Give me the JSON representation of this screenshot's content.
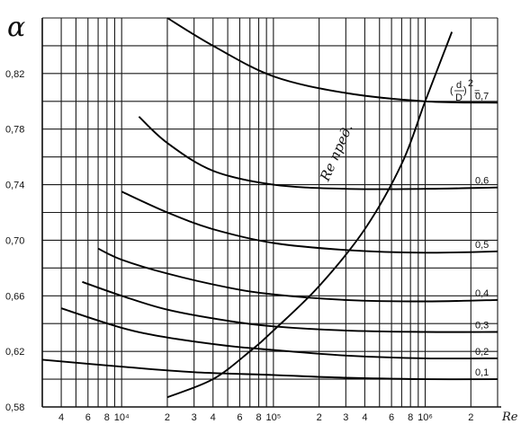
{
  "chart_data": {
    "type": "line",
    "x_scale": "log",
    "xlim": [
      3000,
      3000000
    ],
    "ylim": [
      0.58,
      0.86
    ],
    "ylabel": "α",
    "xlabel": "Re",
    "grid": true,
    "legend": "none",
    "y_ticks": [
      {
        "value": 0.58,
        "label": "0,58"
      },
      {
        "value": 0.62,
        "label": "0,62"
      },
      {
        "value": 0.66,
        "label": "0,66"
      },
      {
        "value": 0.7,
        "label": "0,70"
      },
      {
        "value": 0.74,
        "label": "0,74"
      },
      {
        "value": 0.78,
        "label": "0,78"
      },
      {
        "value": 0.82,
        "label": "0,82"
      }
    ],
    "y_grid": [
      0.58,
      0.6,
      0.62,
      0.64,
      0.66,
      0.68,
      0.7,
      0.72,
      0.74,
      0.76,
      0.78,
      0.8,
      0.82,
      0.84,
      0.86
    ],
    "x_ticks": [
      {
        "value": 4000,
        "label": "4"
      },
      {
        "value": 6000,
        "label": "6"
      },
      {
        "value": 8000,
        "label": "8"
      },
      {
        "value": 10000,
        "label": "10⁴"
      },
      {
        "value": 20000,
        "label": "2"
      },
      {
        "value": 30000,
        "label": "3"
      },
      {
        "value": 40000,
        "label": "4"
      },
      {
        "value": 60000,
        "label": "6"
      },
      {
        "value": 80000,
        "label": "8"
      },
      {
        "value": 100000,
        "label": "10⁵"
      },
      {
        "value": 200000,
        "label": "2"
      },
      {
        "value": 300000,
        "label": "3"
      },
      {
        "value": 400000,
        "label": "4"
      },
      {
        "value": 600000,
        "label": "6"
      },
      {
        "value": 800000,
        "label": "8"
      },
      {
        "value": 1000000,
        "label": "10⁶"
      },
      {
        "value": 2000000,
        "label": "2"
      }
    ],
    "x_grid": [
      3000,
      4000,
      5000,
      6000,
      7000,
      8000,
      9000,
      10000,
      20000,
      30000,
      40000,
      50000,
      60000,
      70000,
      80000,
      90000,
      100000,
      200000,
      300000,
      400000,
      500000,
      600000,
      700000,
      800000,
      900000,
      1000000,
      2000000,
      3000000
    ],
    "curve_group_label": "(d/D)² =",
    "series": [
      {
        "name": "0,7",
        "x": [
          20000,
          40000,
          100000,
          300000,
          1000000,
          3000000
        ],
        "y": [
          0.86,
          0.84,
          0.818,
          0.806,
          0.8,
          0.799
        ]
      },
      {
        "name": "0,6",
        "x": [
          13000,
          20000,
          40000,
          100000,
          300000,
          1000000,
          3000000
        ],
        "y": [
          0.789,
          0.77,
          0.75,
          0.74,
          0.737,
          0.737,
          0.738
        ]
      },
      {
        "name": "0,5",
        "x": [
          10000,
          20000,
          40000,
          100000,
          300000,
          1000000,
          3000000
        ],
        "y": [
          0.735,
          0.72,
          0.708,
          0.698,
          0.693,
          0.691,
          0.692
        ]
      },
      {
        "name": "0,4",
        "x": [
          7000,
          10000,
          20000,
          50000,
          100000,
          300000,
          1000000,
          3000000
        ],
        "y": [
          0.694,
          0.686,
          0.676,
          0.666,
          0.661,
          0.657,
          0.656,
          0.657
        ]
      },
      {
        "name": "0,3",
        "x": [
          5500,
          10000,
          20000,
          50000,
          100000,
          300000,
          1000000,
          3000000
        ],
        "y": [
          0.67,
          0.66,
          0.65,
          0.642,
          0.638,
          0.635,
          0.634,
          0.634
        ]
      },
      {
        "name": "0,2",
        "x": [
          4000,
          10000,
          20000,
          50000,
          100000,
          300000,
          1000000,
          3000000
        ],
        "y": [
          0.651,
          0.637,
          0.63,
          0.624,
          0.621,
          0.617,
          0.615,
          0.615
        ]
      },
      {
        "name": "0,1",
        "x": [
          3000,
          10000,
          30000,
          100000,
          300000,
          1000000,
          3000000
        ],
        "y": [
          0.614,
          0.609,
          0.605,
          0.603,
          0.601,
          0.6,
          0.6
        ]
      }
    ],
    "limit_curve": {
      "name": "Re пред.",
      "x": [
        20000,
        40000,
        70000,
        100000,
        200000,
        400000,
        700000,
        1000000,
        1500000
      ],
      "y": [
        0.587,
        0.6,
        0.62,
        0.635,
        0.667,
        0.708,
        0.755,
        0.8,
        0.85
      ]
    }
  }
}
